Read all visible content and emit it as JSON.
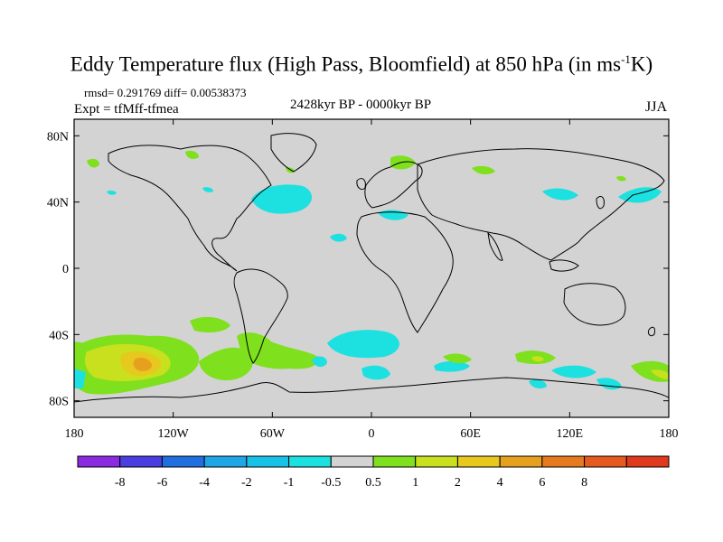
{
  "title": {
    "main": "Eddy Temperature flux (High Pass, Bloomfield) at 850 hPa (in ms",
    "sup": "-1",
    "tail": "K)"
  },
  "stats_line": "rmsd= 0.291769 diff= 0.00538373",
  "experiment": "Expt = tfMff-tfmea",
  "period": "2428kyr BP - 0000kyr BP",
  "season": "JJA",
  "map": {
    "projection": "cylindrical equidistant",
    "lon_range": [
      -180,
      180
    ],
    "lat_range": [
      -90,
      90
    ],
    "lat_ticks": [
      {
        "value": 80,
        "label": "80N"
      },
      {
        "value": 40,
        "label": "40N"
      },
      {
        "value": 0,
        "label": "0"
      },
      {
        "value": -40,
        "label": "40S"
      },
      {
        "value": -80,
        "label": "80S"
      }
    ],
    "lon_ticks": [
      {
        "value": -180,
        "label": "180"
      },
      {
        "value": -120,
        "label": "120W"
      },
      {
        "value": -60,
        "label": "60W"
      },
      {
        "value": 0,
        "label": "0"
      },
      {
        "value": 60,
        "label": "60E"
      },
      {
        "value": 120,
        "label": "120E"
      },
      {
        "value": 180,
        "label": "180"
      }
    ],
    "background_color": "#d3d3d3"
  },
  "colorbar": {
    "colors": [
      "#8a2be2",
      "#4a3ee0",
      "#1f6fe0",
      "#1fa6e6",
      "#16c3e6",
      "#1de0e0",
      "#d3d3d3",
      "#7fe01e",
      "#c8e01e",
      "#e6c81e",
      "#e6a01e",
      "#e67a1e",
      "#e65a1e",
      "#e03a1e"
    ],
    "labels": [
      "-8",
      "-6",
      "-4",
      "-2",
      "-1",
      "-0.5",
      "0.5",
      "1",
      "2",
      "4",
      "6",
      "8"
    ]
  }
}
